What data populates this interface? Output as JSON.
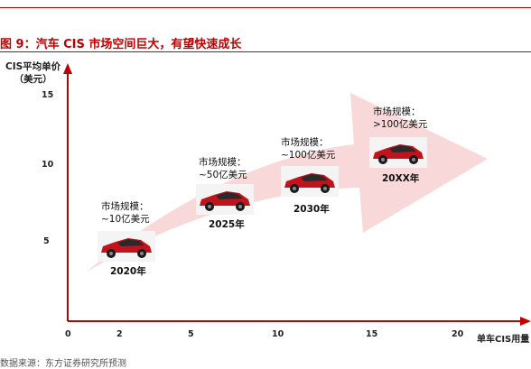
{
  "figure": {
    "title": "图 9：汽车 CIS 市场空间巨大，有望快速成长",
    "y_axis_label_line1": "CIS平均单价",
    "y_axis_label_line2": "（美元）",
    "x_axis_label": "单车CIS用量",
    "source": "数据来源：东方证券研究所预测",
    "accent_color": "#c00000",
    "arrow_color": "#f8d8d8",
    "car_color": "#c2121b"
  },
  "chart_data": {
    "type": "scatter",
    "xlabel": "单车CIS用量",
    "ylabel": "CIS平均单价（美元）",
    "x_ticks": [
      "0",
      "2",
      "5",
      "10",
      "15",
      "20"
    ],
    "y_ticks": [
      "5",
      "10",
      "15"
    ],
    "points": [
      {
        "label": "2020年",
        "market_line1": "市场规模：",
        "market_line2": "~10亿美元",
        "x": 3,
        "y": 4
      },
      {
        "label": "2025年",
        "market_line1": "市场规模：",
        "market_line2": "~50亿美元",
        "x": 7,
        "y": 8
      },
      {
        "label": "2030年",
        "market_line1": "市场规模：",
        "market_line2": "~100亿美元",
        "x": 11.5,
        "y": 9
      },
      {
        "label": "20XX年",
        "market_line1": "市场规模：",
        "market_line2": ">100亿美元",
        "x": 18,
        "y": 11
      }
    ]
  }
}
